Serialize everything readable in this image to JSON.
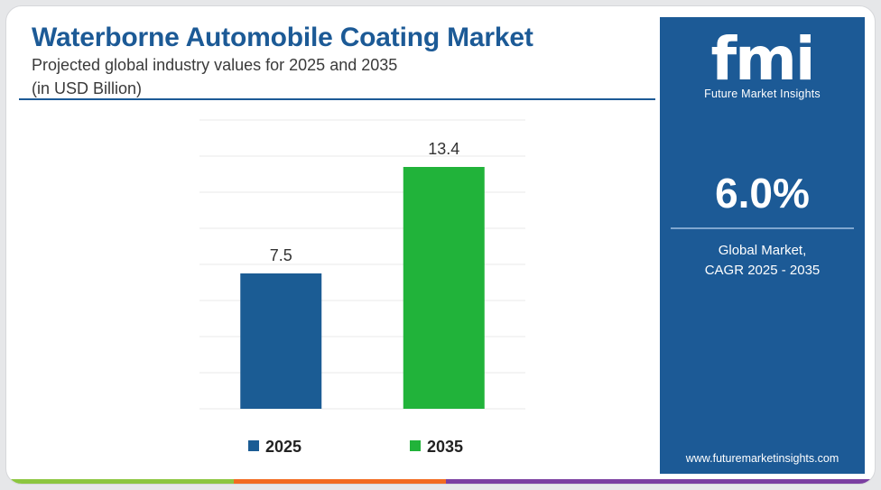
{
  "header": {
    "title": "Waterborne Automobile Coating Market",
    "subtitle_line1": "Projected global industry values for 2025 and 2035",
    "subtitle_line2": "(in USD Billion)"
  },
  "sidebar": {
    "logo_mark": "fmi",
    "logo_text": "Future Market Insights",
    "cagr_value": "6.0%",
    "cagr_label_line1": "Global Market,",
    "cagr_label_line2": "CAGR 2025 - 2035",
    "url": "www.futuremarketinsights.com"
  },
  "colors": {
    "title": "#1c5a96",
    "panel": "#1c5a96",
    "bar_2025": "#1b5c94",
    "bar_2035": "#21b33a",
    "strip": [
      "#8cc63f",
      "#f26b21",
      "#7b3fa1"
    ]
  },
  "chart_data": {
    "type": "bar",
    "categories": [
      "2025",
      "2035"
    ],
    "series": [
      {
        "name": "2025",
        "values": [
          7.5,
          null
        ],
        "labels": [
          "7.5",
          ""
        ]
      },
      {
        "name": "2035",
        "values": [
          null,
          13.4
        ],
        "labels": [
          "",
          "13.4"
        ]
      }
    ],
    "ylim": [
      0,
      16
    ],
    "grid": true,
    "legend": "bottom"
  }
}
